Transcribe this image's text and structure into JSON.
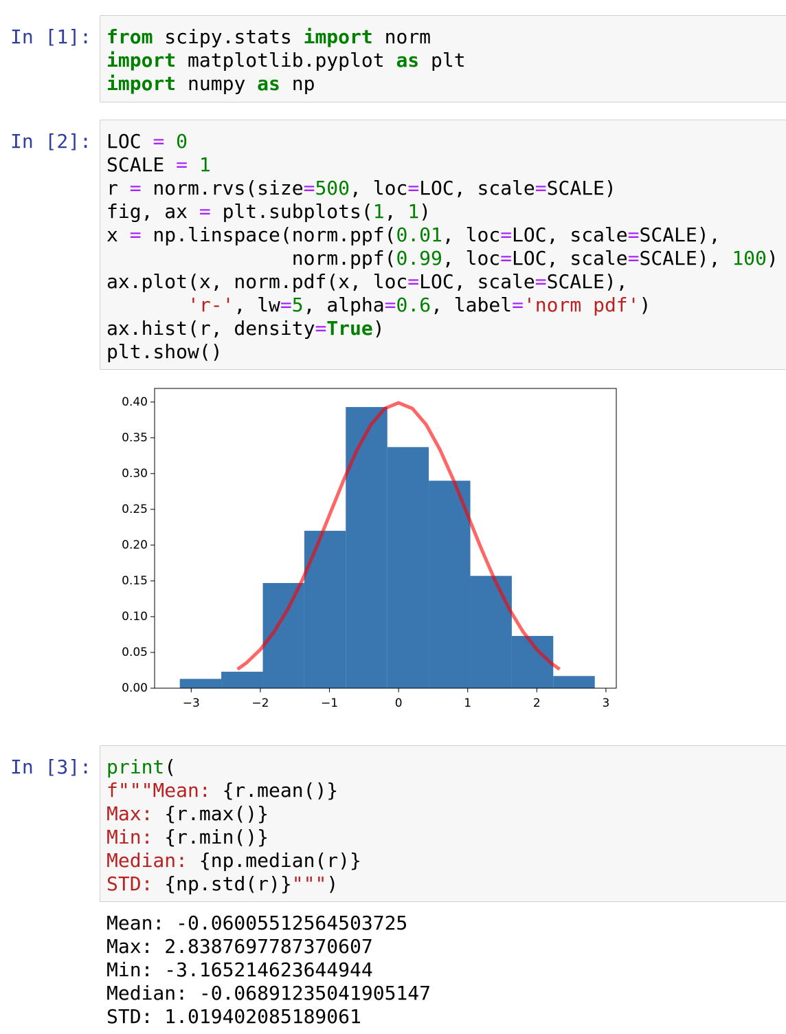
{
  "cells": [
    {
      "prompt": "In [1]:",
      "code": [
        [
          {
            "text": "from",
            "color": "#008000",
            "bold": true
          },
          {
            "text": " scipy.stats "
          },
          {
            "text": "import",
            "color": "#008000",
            "bold": true
          },
          {
            "text": " norm"
          }
        ],
        [
          {
            "text": "import",
            "color": "#008000",
            "bold": true
          },
          {
            "text": " matplotlib.pyplot "
          },
          {
            "text": "as",
            "color": "#008000",
            "bold": true
          },
          {
            "text": " plt"
          }
        ],
        [
          {
            "text": "import",
            "color": "#008000",
            "bold": true
          },
          {
            "text": " numpy "
          },
          {
            "text": "as",
            "color": "#008000",
            "bold": true
          },
          {
            "text": " np"
          }
        ]
      ]
    },
    {
      "prompt": "In [2]:",
      "code": [
        [
          {
            "text": "LOC "
          },
          {
            "text": "=",
            "color": "#aa22ff"
          },
          {
            "text": " "
          },
          {
            "text": "0",
            "color": "#008000"
          }
        ],
        [
          {
            "text": "SCALE "
          },
          {
            "text": "=",
            "color": "#aa22ff"
          },
          {
            "text": " "
          },
          {
            "text": "1",
            "color": "#008000"
          }
        ],
        [
          {
            "text": "r "
          },
          {
            "text": "=",
            "color": "#aa22ff"
          },
          {
            "text": " norm.rvs(size"
          },
          {
            "text": "=",
            "color": "#aa22ff"
          },
          {
            "text": "500",
            "color": "#008000"
          },
          {
            "text": ", loc"
          },
          {
            "text": "=",
            "color": "#aa22ff"
          },
          {
            "text": "LOC, scale"
          },
          {
            "text": "=",
            "color": "#aa22ff"
          },
          {
            "text": "SCALE)"
          }
        ],
        [
          {
            "text": "fig, ax "
          },
          {
            "text": "=",
            "color": "#aa22ff"
          },
          {
            "text": " plt.subplots("
          },
          {
            "text": "1",
            "color": "#008000"
          },
          {
            "text": ", "
          },
          {
            "text": "1",
            "color": "#008000"
          },
          {
            "text": ")"
          }
        ],
        [
          {
            "text": "x "
          },
          {
            "text": "=",
            "color": "#aa22ff"
          },
          {
            "text": " np.linspace(norm.ppf("
          },
          {
            "text": "0.01",
            "color": "#008000"
          },
          {
            "text": ", loc"
          },
          {
            "text": "=",
            "color": "#aa22ff"
          },
          {
            "text": "LOC, scale"
          },
          {
            "text": "=",
            "color": "#aa22ff"
          },
          {
            "text": "SCALE),"
          }
        ],
        [
          {
            "text": "                norm.ppf("
          },
          {
            "text": "0.99",
            "color": "#008000"
          },
          {
            "text": ", loc"
          },
          {
            "text": "=",
            "color": "#aa22ff"
          },
          {
            "text": "LOC, scale"
          },
          {
            "text": "=",
            "color": "#aa22ff"
          },
          {
            "text": "SCALE), "
          },
          {
            "text": "100",
            "color": "#008000"
          },
          {
            "text": ")"
          }
        ],
        [
          {
            "text": "ax.plot(x, norm.pdf(x, loc"
          },
          {
            "text": "=",
            "color": "#aa22ff"
          },
          {
            "text": "LOC, scale"
          },
          {
            "text": "=",
            "color": "#aa22ff"
          },
          {
            "text": "SCALE),"
          }
        ],
        [
          {
            "text": "       "
          },
          {
            "text": "'r-'",
            "color": "#ba2121"
          },
          {
            "text": ", lw"
          },
          {
            "text": "=",
            "color": "#aa22ff"
          },
          {
            "text": "5",
            "color": "#008000"
          },
          {
            "text": ", alpha"
          },
          {
            "text": "=",
            "color": "#aa22ff"
          },
          {
            "text": "0.6",
            "color": "#008000"
          },
          {
            "text": ", label"
          },
          {
            "text": "=",
            "color": "#aa22ff"
          },
          {
            "text": "'norm pdf'",
            "color": "#ba2121"
          },
          {
            "text": ")"
          }
        ],
        [
          {
            "text": "ax.hist(r, density"
          },
          {
            "text": "=",
            "color": "#aa22ff"
          },
          {
            "text": "True",
            "color": "#008000",
            "bold": true
          },
          {
            "text": ")"
          }
        ],
        [
          {
            "text": "plt.show()"
          }
        ]
      ],
      "chart_data": {
        "type": "histogram",
        "bins": [
          -3.165,
          -2.565,
          -1.964,
          -1.364,
          -0.764,
          -0.163,
          0.437,
          1.038,
          1.638,
          2.238,
          2.839
        ],
        "values": [
          0.013,
          0.023,
          0.147,
          0.22,
          0.393,
          0.337,
          0.29,
          0.157,
          0.073,
          0.017
        ],
        "color": "#3a76af",
        "overlay": {
          "type": "line",
          "color": "#ff0000",
          "alpha": 0.6,
          "x": [
            -2.33,
            -2.2,
            -2.0,
            -1.8,
            -1.6,
            -1.4,
            -1.2,
            -1.0,
            -0.8,
            -0.6,
            -0.4,
            -0.2,
            0,
            0.2,
            0.4,
            0.6,
            0.8,
            1.0,
            1.2,
            1.4,
            1.6,
            1.8,
            2.0,
            2.2,
            2.33
          ],
          "values": [
            0.0264,
            0.0355,
            0.054,
            0.079,
            0.1109,
            0.1497,
            0.1942,
            0.242,
            0.2897,
            0.3332,
            0.3683,
            0.391,
            0.3989,
            0.391,
            0.3683,
            0.3332,
            0.2897,
            0.242,
            0.1942,
            0.1497,
            0.1109,
            0.079,
            0.054,
            0.0355,
            0.0264
          ]
        },
        "xlim": [
          -3.53,
          3.15
        ],
        "ylim": [
          0,
          0.419
        ],
        "xticks": [
          {
            "value": -3,
            "label": "−3"
          },
          {
            "value": -2,
            "label": "−2"
          },
          {
            "value": -1,
            "label": "−1"
          },
          0,
          1,
          2,
          3
        ],
        "yticks": [
          {
            "value": 0,
            "label": "0.00"
          },
          {
            "value": 0.05,
            "label": "0.05"
          },
          {
            "value": 0.1,
            "label": "0.10"
          },
          {
            "value": 0.15,
            "label": "0.15"
          },
          {
            "value": 0.2,
            "label": "0.20"
          },
          {
            "value": 0.25,
            "label": "0.25"
          },
          {
            "value": 0.3,
            "label": "0.30"
          },
          {
            "value": 0.35,
            "label": "0.35"
          },
          {
            "value": 0.4,
            "label": "0.40"
          }
        ]
      }
    },
    {
      "prompt": "In [3]:",
      "code": [
        [
          {
            "text": "print",
            "color": "#008000"
          },
          {
            "text": "("
          }
        ],
        [
          {
            "text": "f\"\"\"Mean: ",
            "color": "#ba2121"
          },
          {
            "text": "{r.mean()}"
          }
        ],
        [
          {
            "text": "Max: ",
            "color": "#ba2121"
          },
          {
            "text": "{r.max()}"
          }
        ],
        [
          {
            "text": "Min: ",
            "color": "#ba2121"
          },
          {
            "text": "{r.min()}"
          }
        ],
        [
          {
            "text": "Median: ",
            "color": "#ba2121"
          },
          {
            "text": "{np.median(r)}"
          }
        ],
        [
          {
            "text": "STD: ",
            "color": "#ba2121"
          },
          {
            "text": "{np.std(r)}"
          },
          {
            "text": "\"\"\"",
            "color": "#ba2121"
          },
          {
            "text": ")"
          }
        ]
      ],
      "output": [
        "Mean: -0.06005512564503725",
        "Max: 2.8387697787370607",
        "Min: -3.165214623644944",
        "Median: -0.06891235041905147",
        "STD: 1.019402085189061"
      ]
    }
  ]
}
